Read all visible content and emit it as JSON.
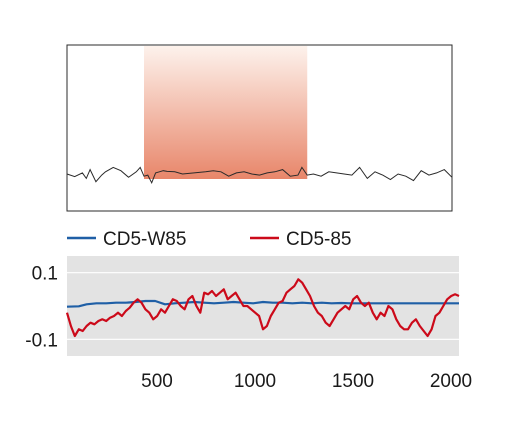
{
  "chart_data": [
    {
      "type": "line",
      "title": "",
      "panel": "top",
      "highlight_band": {
        "x_range": [
          0.2,
          0.624
        ],
        "colors": [
          "#e8866a",
          "#fdf2ec"
        ]
      },
      "series": [
        {
          "color": "#2a2a2a",
          "x": [
            0,
            0.02,
            0.04,
            0.05,
            0.06,
            0.075,
            0.09,
            0.1,
            0.12,
            0.14,
            0.16,
            0.18,
            0.19,
            0.2,
            0.21,
            0.22,
            0.23,
            0.24,
            0.25,
            0.26,
            0.28,
            0.3,
            0.33,
            0.36,
            0.38,
            0.4,
            0.42,
            0.44,
            0.46,
            0.48,
            0.5,
            0.52,
            0.54,
            0.56,
            0.58,
            0.6,
            0.61,
            0.624,
            0.64,
            0.66,
            0.68,
            0.7,
            0.72,
            0.74,
            0.76,
            0.78,
            0.8,
            0.82,
            0.84,
            0.86,
            0.88,
            0.9,
            0.92,
            0.94,
            0.96,
            0.98,
            1.0
          ],
          "y": [
            0.5,
            0.62,
            0.45,
            0.7,
            0.3,
            0.85,
            0.55,
            0.4,
            0.2,
            0.35,
            0.65,
            0.4,
            0.2,
            0.6,
            0.55,
            0.9,
            0.45,
            0.4,
            0.35,
            0.38,
            0.4,
            0.5,
            0.45,
            0.4,
            0.35,
            0.4,
            0.6,
            0.45,
            0.4,
            0.5,
            0.55,
            0.45,
            0.4,
            0.3,
            0.6,
            0.55,
            0.2,
            0.55,
            0.5,
            0.6,
            0.4,
            0.45,
            0.5,
            0.55,
            0.2,
            0.7,
            0.4,
            0.55,
            0.75,
            0.5,
            0.6,
            0.8,
            0.35,
            0.55,
            0.45,
            0.3,
            0.65
          ]
        }
      ]
    },
    {
      "type": "line",
      "title": "",
      "xlabel": "",
      "ylabel": "",
      "panel": "bottom",
      "grid": true,
      "background": "#e3e3e3",
      "xlim": [
        0,
        2000
      ],
      "ylim": [
        -0.15,
        0.15
      ],
      "xticks": [
        500,
        1000,
        1500,
        2000
      ],
      "xtick_labels": [
        "500",
        "1000",
        "1500",
        "2000"
      ],
      "yticks": [
        0.1,
        -0.1
      ],
      "ytick_labels": [
        "0.1",
        "-0.1"
      ],
      "legend": "top-left",
      "series": [
        {
          "name": "CD5-W85",
          "color": "#1f5fa6",
          "x": [
            0,
            60,
            100,
            150,
            200,
            250,
            300,
            350,
            400,
            450,
            500,
            550,
            600,
            650,
            700,
            750,
            800,
            850,
            900,
            950,
            1000,
            1050,
            1100,
            1150,
            1200,
            1250,
            1300,
            1350,
            1400,
            1450,
            1500,
            1550,
            1600,
            1650,
            1700,
            1750,
            1800,
            1850,
            1900,
            1950,
            2000
          ],
          "y": [
            -0.002,
            -0.001,
            0.005,
            0.008,
            0.008,
            0.01,
            0.01,
            0.012,
            0.015,
            0.015,
            0.005,
            0.008,
            0.01,
            0.012,
            0.01,
            0.008,
            0.01,
            0.012,
            0.01,
            0.008,
            0.012,
            0.01,
            0.01,
            0.008,
            0.01,
            0.008,
            0.01,
            0.008,
            0.009,
            0.008,
            0.008,
            0.008,
            0.008,
            0.008,
            0.008,
            0.008,
            0.008,
            0.008,
            0.008,
            0.008,
            0.008
          ]
        },
        {
          "name": "CD5-85",
          "color": "#cc0a1a",
          "x": [
            0,
            20,
            40,
            60,
            80,
            100,
            120,
            140,
            160,
            180,
            200,
            220,
            240,
            260,
            280,
            300,
            320,
            340,
            360,
            380,
            400,
            420,
            440,
            460,
            480,
            500,
            520,
            540,
            560,
            580,
            600,
            620,
            640,
            660,
            680,
            700,
            720,
            740,
            760,
            780,
            800,
            820,
            840,
            860,
            880,
            900,
            920,
            940,
            960,
            980,
            1000,
            1020,
            1040,
            1060,
            1080,
            1100,
            1120,
            1140,
            1160,
            1180,
            1200,
            1220,
            1240,
            1260,
            1280,
            1300,
            1320,
            1340,
            1360,
            1380,
            1400,
            1420,
            1440,
            1460,
            1480,
            1500,
            1520,
            1540,
            1560,
            1580,
            1600,
            1620,
            1640,
            1660,
            1680,
            1700,
            1720,
            1740,
            1760,
            1780,
            1800,
            1820,
            1840,
            1860,
            1880,
            1900,
            1920,
            1940,
            1960,
            1980,
            2000
          ],
          "y": [
            -0.02,
            -0.06,
            -0.09,
            -0.07,
            -0.075,
            -0.06,
            -0.05,
            -0.055,
            -0.045,
            -0.04,
            -0.045,
            -0.035,
            -0.03,
            -0.02,
            -0.03,
            -0.015,
            -0.005,
            0.01,
            0.02,
            0.01,
            -0.01,
            -0.02,
            -0.04,
            -0.03,
            -0.01,
            -0.02,
            0.0,
            0.02,
            0.015,
            0.0,
            -0.01,
            0.02,
            0.03,
            0.0,
            -0.02,
            0.04,
            0.035,
            0.045,
            0.03,
            0.04,
            0.05,
            0.02,
            0.03,
            0.04,
            0.02,
            0.0,
            0.0,
            -0.01,
            -0.02,
            -0.03,
            -0.07,
            -0.06,
            -0.03,
            -0.01,
            0.01,
            0.015,
            0.04,
            0.05,
            0.06,
            0.08,
            0.07,
            0.05,
            0.03,
            0.0,
            -0.02,
            -0.03,
            -0.05,
            -0.06,
            -0.04,
            -0.02,
            -0.01,
            0.0,
            -0.01,
            0.02,
            0.03,
            0.01,
            0.0,
            0.01,
            -0.02,
            -0.04,
            -0.02,
            -0.03,
            0.0,
            -0.01,
            -0.04,
            -0.06,
            -0.07,
            -0.07,
            -0.05,
            -0.04,
            -0.06,
            -0.075,
            -0.09,
            -0.07,
            -0.03,
            -0.02,
            0.0,
            0.02,
            0.03,
            0.035,
            0.03
          ]
        }
      ]
    }
  ]
}
